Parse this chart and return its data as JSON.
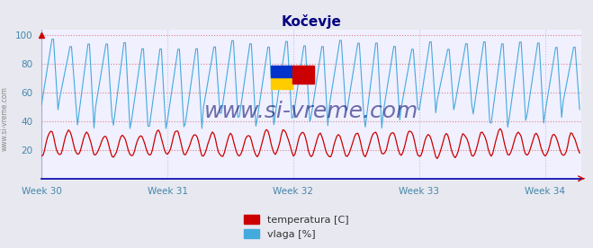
{
  "title": "Kočevje",
  "title_color": "#000080",
  "title_fontsize": 11,
  "bg_color": "#e8e8f0",
  "plot_bg_color": "#f0f0ff",
  "grid_color_h": "#e08080",
  "grid_color_v": "#c0c0e0",
  "x_tick_labels": [
    "Week 30",
    "Week 31",
    "Week 32",
    "Week 33",
    "Week 34"
  ],
  "x_tick_positions": [
    0,
    84,
    168,
    252,
    336
  ],
  "y_ticks": [
    20,
    40,
    60,
    80,
    100
  ],
  "ylim": [
    0,
    104
  ],
  "xlim_end": 360,
  "temp_color": "#cc0000",
  "humidity_color": "#44aadd",
  "watermark_text": "www.si-vreme.com",
  "watermark_color": "#000066",
  "watermark_fontsize": 18,
  "side_text": "www.si-vreme.com",
  "side_text_color": "#888888",
  "legend_temp_label": "temperatura [C]",
  "legend_humidity_label": "vlaga [%]",
  "legend_temp_color": "#cc0000",
  "legend_humidity_color": "#44aadd",
  "n_cycles": 30,
  "pts_per_cycle": 12,
  "temp_min": 15,
  "temp_max": 33,
  "hum_peak": 98,
  "hum_trough_base": 46,
  "hum_trough_var": 10
}
